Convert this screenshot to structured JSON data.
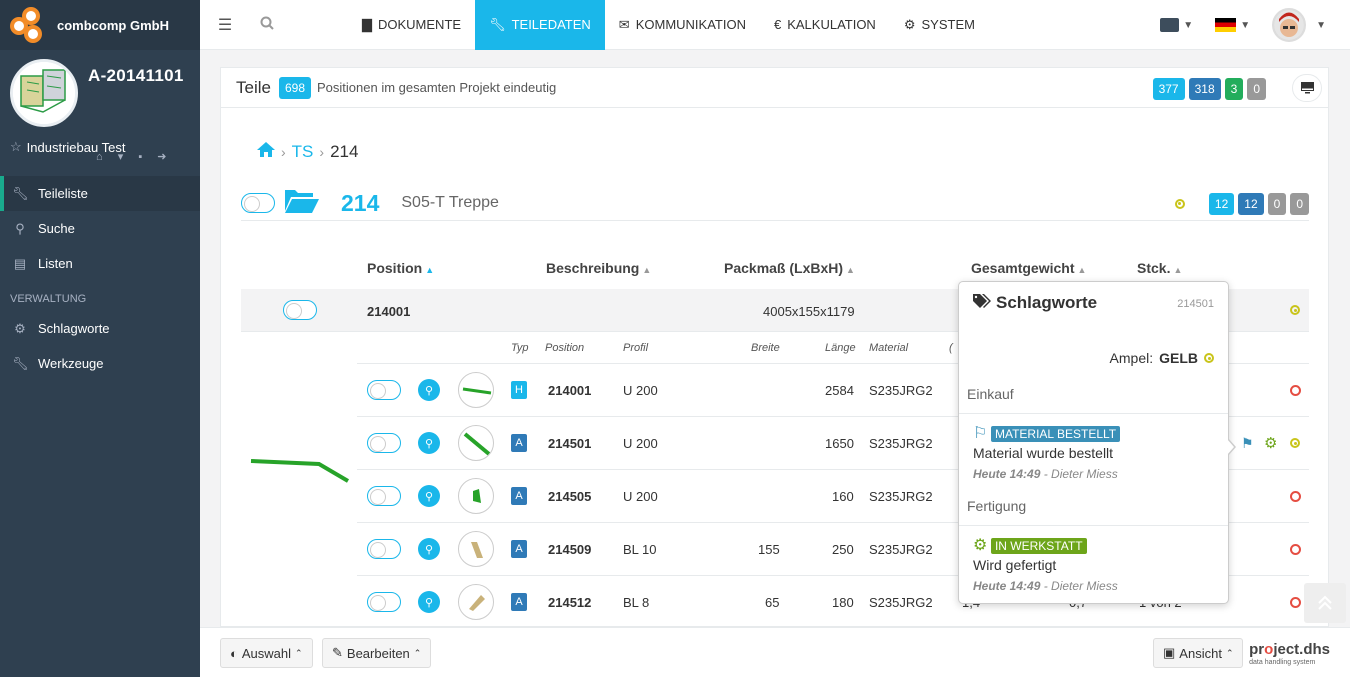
{
  "brand": {
    "company": "combcomp GmbH"
  },
  "project": {
    "code": "A-20141101",
    "client": "Industriebau Test"
  },
  "sidebar": {
    "items": [
      {
        "label": "Teileliste"
      },
      {
        "label": "Suche"
      },
      {
        "label": "Listen"
      }
    ],
    "section_label": "VERWALTUNG",
    "admin_items": [
      {
        "label": "Schlagworte"
      },
      {
        "label": "Werkzeuge"
      }
    ]
  },
  "topnav": {
    "tabs": [
      {
        "label": "DOKUMENTE"
      },
      {
        "label": "TEILEDATEN"
      },
      {
        "label": "KOMMUNIKATION"
      },
      {
        "label": "KALKULATION",
        "icon_glyph": "€"
      },
      {
        "label": "SYSTEM"
      }
    ]
  },
  "panel": {
    "title": "Teile",
    "count": "698",
    "subtitle": "Positionen im gesamten Projekt eindeutig",
    "badges": [
      "377",
      "318",
      "3",
      "0"
    ]
  },
  "breadcrumb": {
    "level1": "TS",
    "level2": "214",
    "sep": "›"
  },
  "group": {
    "number": "214",
    "name": "S05-T Treppe",
    "badges": [
      "12",
      "12",
      "0",
      "0"
    ]
  },
  "table": {
    "headers": [
      "Position",
      "Beschreibung",
      "Packmaß (LxBxH)",
      "Gesamtgewicht",
      "Stck."
    ],
    "main_row": {
      "position": "214001",
      "packmass": "4005x155x1179"
    },
    "sub_headers": [
      "Typ",
      "Position",
      "Profil",
      "Breite",
      "Länge",
      "Material",
      "("
    ],
    "rows": [
      {
        "typ": "H",
        "position": "214001",
        "profil": "U 200",
        "breite": "",
        "laenge": "2584",
        "material": "S235JRG2"
      },
      {
        "typ": "A",
        "position": "214501",
        "profil": "U 200",
        "breite": "",
        "laenge": "1650",
        "material": "S235JRG2"
      },
      {
        "typ": "A",
        "position": "214505",
        "profil": "U 200",
        "breite": "",
        "laenge": "160",
        "material": "S235JRG2"
      },
      {
        "typ": "A",
        "position": "214509",
        "profil": "BL 10",
        "breite": "155",
        "laenge": "250",
        "material": "S235JRG2"
      },
      {
        "typ": "A",
        "position": "214512",
        "profil": "BL 8",
        "breite": "65",
        "laenge": "180",
        "material": "S235JRG2"
      }
    ],
    "last_row_extra": {
      "weight": "1,4",
      "weight2": "0,7",
      "count": "1 von 2"
    }
  },
  "popover": {
    "title": "Schlagworte",
    "id": "214501",
    "ampel_label": "Ampel:",
    "ampel_value": "GELB",
    "sections": [
      {
        "title": "Einkauf",
        "tag": "MATERIAL BESTELLT",
        "text": "Material wurde bestellt",
        "time": "Heute 14:49",
        "user": "- Dieter Miess"
      },
      {
        "title": "Fertigung",
        "tag": "IN WERKSTATT",
        "text": "Wird gefertigt",
        "time": "Heute 14:49",
        "user": "- Dieter Miess"
      }
    ]
  },
  "footer": {
    "auswahl": "Auswahl",
    "bearbeiten": "Bearbeiten",
    "ansicht": "Ansicht",
    "brand_pre": "pr",
    "brand_o": "o",
    "brand_post": "ject.dhs",
    "brand_sub": "data handling system"
  },
  "colors": {
    "accent": "#1ab7ea",
    "sidebar": "#2f4050",
    "blue_badge": "#2f7ab7",
    "green_badge": "#23ad5c",
    "gray_badge": "#999999",
    "ampel_yellow": "#c9c41a",
    "ampel_red": "#e54d42",
    "logo_orange": "#f28c28"
  }
}
